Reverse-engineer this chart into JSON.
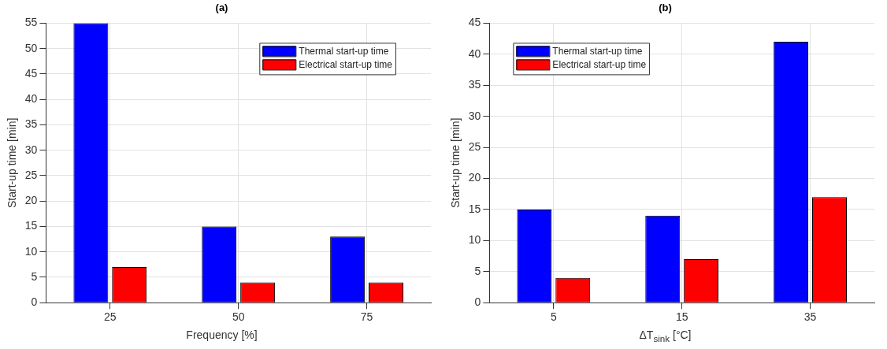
{
  "chart_data": [
    {
      "type": "bar",
      "title": "(a)",
      "xlabel": "Frequency [%]",
      "ylabel": "Start-up time [min]",
      "categories": [
        "25",
        "50",
        "75"
      ],
      "series": [
        {
          "name": "Thermal start-up time",
          "color": "#0000ff",
          "values": [
            55,
            15,
            13
          ]
        },
        {
          "name": "Electrical start-up time",
          "color": "#ff0000",
          "values": [
            7,
            4,
            4
          ]
        }
      ],
      "ylim": [
        0,
        55
      ],
      "yticks": [
        0,
        5,
        10,
        15,
        20,
        25,
        30,
        35,
        40,
        45,
        50,
        55
      ],
      "grid": true,
      "legend": "top right"
    },
    {
      "type": "bar",
      "title": "(b)",
      "xlabel": "ΔT$_{sink}$ [°C]",
      "ylabel": "Start-up time [min]",
      "categories": [
        "5",
        "15",
        "35"
      ],
      "series": [
        {
          "name": "Thermal start-up time",
          "color": "#0000ff",
          "values": [
            15,
            14,
            42
          ]
        },
        {
          "name": "Electrical start-up time",
          "color": "#ff0000",
          "values": [
            4,
            7,
            17
          ]
        }
      ],
      "ylim": [
        0,
        45
      ],
      "yticks": [
        0,
        5,
        10,
        15,
        20,
        25,
        30,
        35,
        40,
        45
      ],
      "grid": true,
      "legend": "top left"
    }
  ]
}
